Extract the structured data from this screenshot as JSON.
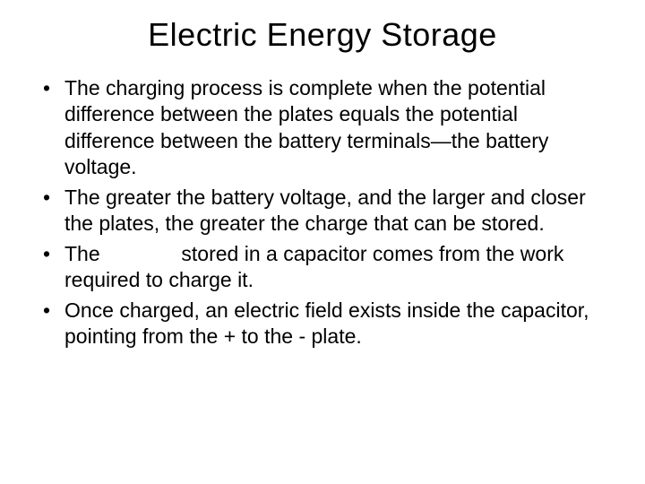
{
  "slide": {
    "title": "Electric Energy Storage",
    "bullets": [
      {
        "text": "The charging process is complete when the potential difference between the plates equals the potential difference between the battery terminals—the battery voltage."
      },
      {
        "text": "The greater the battery voltage, and the larger and closer the plates, the greater the charge that can be stored."
      },
      {
        "pre": "The ",
        "gap": " ",
        "post": " stored in a capacitor comes from the work required to charge it."
      },
      {
        "text": "Once charged, an electric field exists inside the capacitor, pointing from the + to the - plate."
      }
    ],
    "colors": {
      "background": "#ffffff",
      "text": "#000000"
    },
    "typography": {
      "title_fontsize": 36,
      "body_fontsize": 23,
      "font_family": "Arial"
    }
  }
}
